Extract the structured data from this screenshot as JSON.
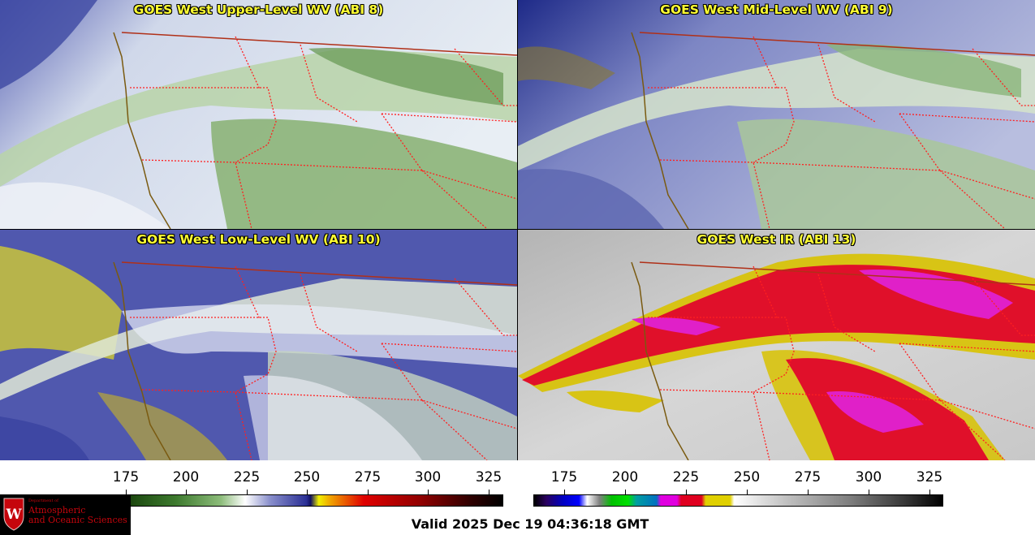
{
  "panels": [
    {
      "title": "GOES West Upper-Level WV (ABI 8)"
    },
    {
      "title": "GOES West Mid-Level WV (ABI 9)"
    },
    {
      "title": "GOES West Low-Level WV (ABI 10)"
    },
    {
      "title": "GOES West IR (ABI 13)"
    }
  ],
  "wv_colorbar": {
    "ticks": [
      "175",
      "200",
      "225",
      "250",
      "275",
      "300",
      "325"
    ]
  },
  "ir_colorbar": {
    "ticks": [
      "175",
      "200",
      "225",
      "250",
      "275",
      "300",
      "325"
    ]
  },
  "valid_time": "Valid 2025 Dec 19 04:36:18 GMT",
  "logo": {
    "line_small": "Department of",
    "line1": "Atmospheric",
    "line2": "and Oceanic Sciences"
  },
  "colors": {
    "title_text": "#ffff33",
    "state_border": "#ff2020",
    "coastline": "#7a5a10",
    "logo_red": "#c5050c"
  }
}
